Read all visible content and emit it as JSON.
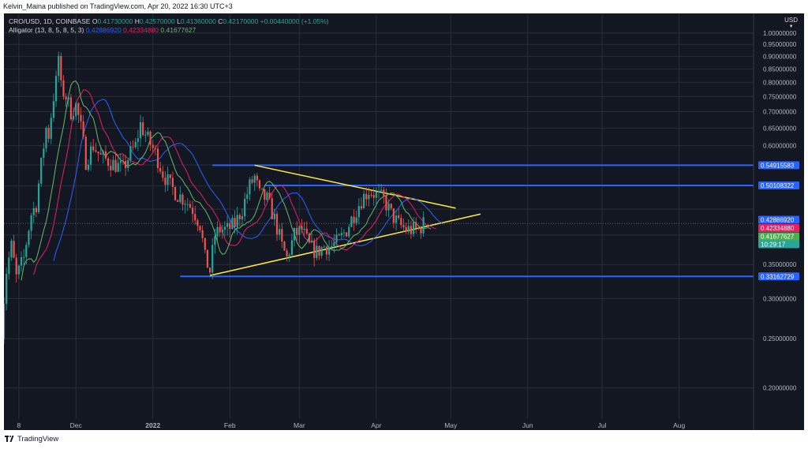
{
  "header": {
    "published": "Kelvin_Maina published on TradingView.com, Apr 20, 2022 16:30 UTC+3"
  },
  "legend": {
    "symbol": "CRO/USD, 1D, COINBASE",
    "o_label": "O",
    "o_value": "0.41730000",
    "h_label": "H",
    "h_value": "0.42570000",
    "l_label": "L",
    "l_value": "0.41360000",
    "c_label": "C",
    "c_value": "0.42170000",
    "change": "+0.00440000 (+1.05%)",
    "alligator_label": "Alligator (13, 8, 5, 8, 5, 3)",
    "jaw": "0.42886920",
    "teeth": "0.42334880",
    "lips": "0.41677627"
  },
  "axis": {
    "currency": "USD"
  },
  "footer": {
    "brand": "TradingView"
  },
  "chart_data": {
    "type": "candlestick",
    "symbol": "CRO/USD",
    "interval": "1D",
    "exchange": "COINBASE",
    "y_scale": "log",
    "ylim": [
      0.17,
      1.07
    ],
    "y_ticks": [
      0.2,
      0.25,
      0.3,
      0.35,
      0.4,
      0.45,
      0.5,
      0.55,
      0.6,
      0.65,
      0.7,
      0.75,
      0.8,
      0.85,
      0.9,
      0.95,
      1.0
    ],
    "y_tick_labels": [
      "0.20000000",
      "0.25000000",
      "0.30000000",
      "0.35000000",
      "",
      "",
      "",
      "",
      "0.60000000",
      "0.65000000",
      "0.70000000",
      "0.75000000",
      "0.80000000",
      "0.85000000",
      "0.90000000",
      "0.95000000",
      "1.00000000"
    ],
    "x_ticks": [
      {
        "label": "8",
        "date": "2021-11-08"
      },
      {
        "label": "Dec",
        "date": "2021-12-01"
      },
      {
        "label": "2022",
        "date": "2022-01-01"
      },
      {
        "label": "Feb",
        "date": "2022-02-01"
      },
      {
        "label": "Mar",
        "date": "2022-03-01"
      },
      {
        "label": "Apr",
        "date": "2022-04-01"
      },
      {
        "label": "May",
        "date": "2022-05-01"
      },
      {
        "label": "Jun",
        "date": "2022-06-01"
      },
      {
        "label": "Jul",
        "date": "2022-07-01"
      },
      {
        "label": "Aug",
        "date": "2022-08-01"
      }
    ],
    "xlim": [
      "2021-11-02",
      "2022-08-31"
    ],
    "last_close": 0.4217,
    "price_labels": [
      {
        "value": 0.54915583,
        "text": "0.54915583",
        "color": "#2962ff"
      },
      {
        "value": 0.50108322,
        "text": "0.50108322",
        "color": "#2962ff"
      },
      {
        "value": 0.4288692,
        "text": "0.42886920",
        "color": "#2962ff"
      },
      {
        "value": 0.4233488,
        "text": "0.42334880",
        "color": "#e91e63"
      },
      {
        "value": 0.4217,
        "text": "0.42170000",
        "sub": "10:29:17",
        "color": "#26a69a"
      },
      {
        "value": 0.41677627,
        "text": "0.41677627",
        "color": "#4caf50"
      },
      {
        "value": 0.33162729,
        "text": "0.33162729",
        "color": "#2962ff"
      }
    ],
    "horizontal_lines": [
      {
        "value": 0.54915583,
        "from": "2022-01-25",
        "color": "#2962ff"
      },
      {
        "value": 0.50108322,
        "from": "2022-02-15",
        "color": "#2962ff"
      },
      {
        "value": 0.33162729,
        "from": "2022-01-12",
        "color": "#2962ff"
      }
    ],
    "trend_lines": [
      {
        "from": [
          "2022-02-11",
          0.549
        ],
        "to": [
          "2022-05-03",
          0.452
        ],
        "color": "#ffeb3b"
      },
      {
        "from": [
          "2022-01-24",
          0.333
        ],
        "to": [
          "2022-05-13",
          0.44
        ],
        "color": "#ffeb3b"
      }
    ],
    "close_path": [
      [
        "2021-11-01",
        0.26
      ],
      [
        "2021-11-03",
        0.34
      ],
      [
        "2021-11-05",
        0.38
      ],
      [
        "2021-11-07",
        0.33
      ],
      [
        "2021-11-10",
        0.36
      ],
      [
        "2021-11-13",
        0.44
      ],
      [
        "2021-11-15",
        0.46
      ],
      [
        "2021-11-17",
        0.55
      ],
      [
        "2021-11-19",
        0.65
      ],
      [
        "2021-11-20",
        0.63
      ],
      [
        "2021-11-22",
        0.75
      ],
      [
        "2021-11-23",
        0.8
      ],
      [
        "2021-11-24",
        0.9
      ],
      [
        "2021-11-25",
        0.78
      ],
      [
        "2021-11-27",
        0.75
      ],
      [
        "2021-11-29",
        0.7
      ],
      [
        "2021-12-01",
        0.72
      ],
      [
        "2021-12-03",
        0.65
      ],
      [
        "2021-12-05",
        0.56
      ],
      [
        "2021-12-08",
        0.6
      ],
      [
        "2021-12-11",
        0.57
      ],
      [
        "2021-12-14",
        0.56
      ],
      [
        "2021-12-17",
        0.55
      ],
      [
        "2021-12-20",
        0.54
      ],
      [
        "2021-12-23",
        0.58
      ],
      [
        "2021-12-25",
        0.6
      ],
      [
        "2021-12-27",
        0.66
      ],
      [
        "2021-12-29",
        0.63
      ],
      [
        "2022-01-02",
        0.58
      ],
      [
        "2022-01-05",
        0.53
      ],
      [
        "2022-01-08",
        0.5
      ],
      [
        "2022-01-11",
        0.48
      ],
      [
        "2022-01-14",
        0.47
      ],
      [
        "2022-01-17",
        0.45
      ],
      [
        "2022-01-20",
        0.42
      ],
      [
        "2022-01-22",
        0.36
      ],
      [
        "2022-01-24",
        0.34
      ],
      [
        "2022-01-26",
        0.4
      ],
      [
        "2022-01-28",
        0.41
      ],
      [
        "2022-01-31",
        0.41
      ],
      [
        "2022-02-03",
        0.42
      ],
      [
        "2022-02-06",
        0.45
      ],
      [
        "2022-02-09",
        0.5
      ],
      [
        "2022-02-11",
        0.52
      ],
      [
        "2022-02-13",
        0.48
      ],
      [
        "2022-02-16",
        0.47
      ],
      [
        "2022-02-19",
        0.43
      ],
      [
        "2022-02-22",
        0.38
      ],
      [
        "2022-02-24",
        0.36
      ],
      [
        "2022-02-27",
        0.4
      ],
      [
        "2022-03-02",
        0.41
      ],
      [
        "2022-03-05",
        0.38
      ],
      [
        "2022-03-08",
        0.37
      ],
      [
        "2022-03-11",
        0.38
      ],
      [
        "2022-03-14",
        0.38
      ],
      [
        "2022-03-17",
        0.39
      ],
      [
        "2022-03-20",
        0.41
      ],
      [
        "2022-03-23",
        0.44
      ],
      [
        "2022-03-26",
        0.47
      ],
      [
        "2022-03-29",
        0.49
      ],
      [
        "2022-04-01",
        0.48
      ],
      [
        "2022-04-04",
        0.47
      ],
      [
        "2022-04-07",
        0.44
      ],
      [
        "2022-04-10",
        0.42
      ],
      [
        "2022-04-13",
        0.41
      ],
      [
        "2022-04-16",
        0.41
      ],
      [
        "2022-04-18",
        0.41
      ],
      [
        "2022-04-20",
        0.4217
      ]
    ],
    "series": [
      {
        "name": "Alligator Jaw",
        "value": 0.4288692,
        "color": "#2962ff"
      },
      {
        "name": "Alligator Teeth",
        "value": 0.4233488,
        "color": "#e91e63"
      },
      {
        "name": "Alligator Lips",
        "value": 0.41677627,
        "color": "#66bb6a"
      }
    ],
    "grid": true
  }
}
